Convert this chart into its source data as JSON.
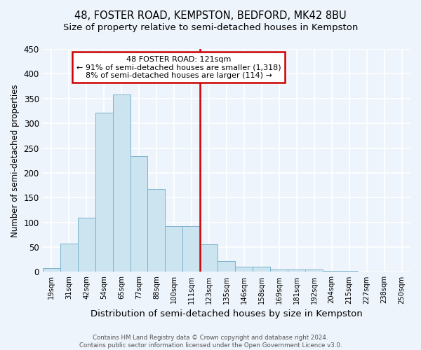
{
  "title": "48, FOSTER ROAD, KEMPSTON, BEDFORD, MK42 8BU",
  "subtitle": "Size of property relative to semi-detached houses in Kempston",
  "xlabel": "Distribution of semi-detached houses by size in Kempston",
  "ylabel": "Number of semi-detached properties",
  "bar_labels": [
    "19sqm",
    "31sqm",
    "42sqm",
    "54sqm",
    "65sqm",
    "77sqm",
    "88sqm",
    "100sqm",
    "111sqm",
    "123sqm",
    "135sqm",
    "146sqm",
    "158sqm",
    "169sqm",
    "181sqm",
    "192sqm",
    "204sqm",
    "215sqm",
    "227sqm",
    "238sqm",
    "250sqm"
  ],
  "bar_values": [
    8,
    57,
    110,
    322,
    358,
    234,
    168,
    92,
    92,
    56,
    22,
    10,
    10,
    5,
    5,
    5,
    2,
    2,
    1,
    1,
    1
  ],
  "bar_color": "#cce4f0",
  "bar_edge_color": "#7ab3cc",
  "ylim": [
    0,
    450
  ],
  "yticks": [
    0,
    50,
    100,
    150,
    200,
    250,
    300,
    350,
    400,
    450
  ],
  "vline_pos": 9,
  "vline_color": "#cc0000",
  "annotation_title": "48 FOSTER ROAD: 121sqm",
  "annotation_line1": "← 91% of semi-detached houses are smaller (1,318)",
  "annotation_line2": "8% of semi-detached houses are larger (114) →",
  "annotation_box_color": "#ffffff",
  "annotation_box_edge": "#cc0000",
  "footer_line1": "Contains HM Land Registry data © Crown copyright and database right 2024.",
  "footer_line2": "Contains public sector information licensed under the Open Government Licence v3.0.",
  "background_color": "#eef4fb",
  "grid_color": "#ffffff",
  "title_fontsize": 10.5,
  "subtitle_fontsize": 9.5,
  "ylabel_fontsize": 8.5,
  "xlabel_fontsize": 9.5
}
